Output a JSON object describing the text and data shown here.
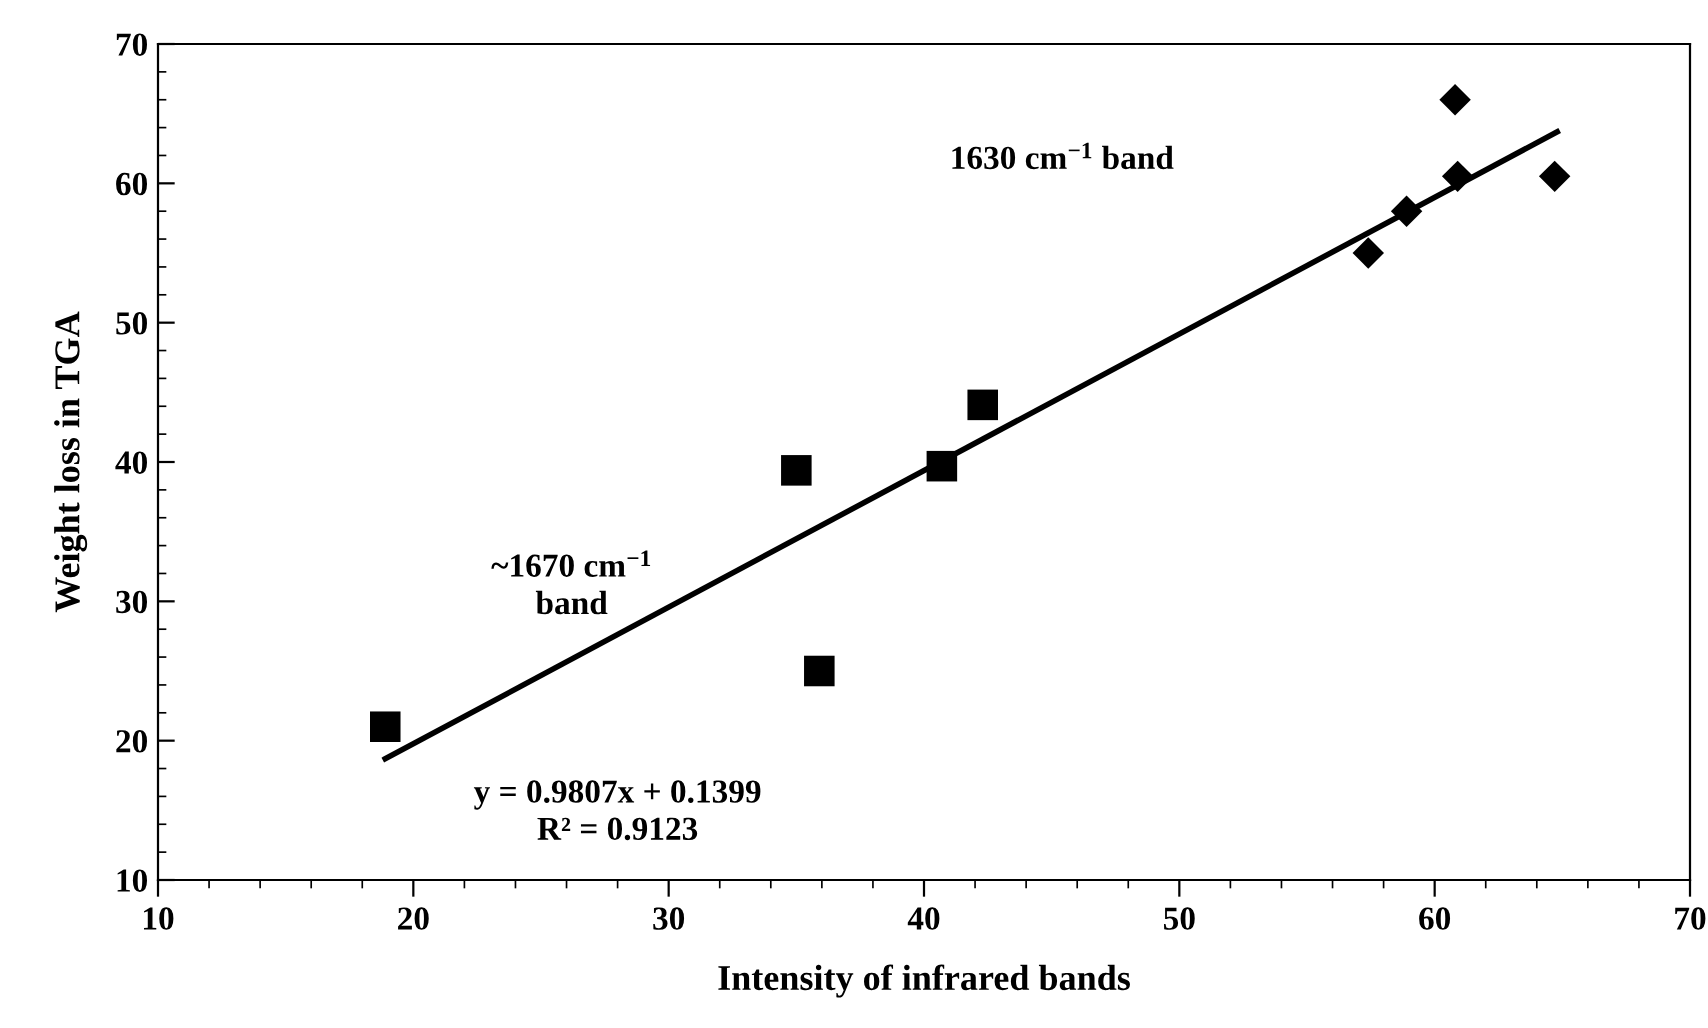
{
  "chart_data": {
    "type": "scatter",
    "xlabel": "Intensity of infrared bands",
    "ylabel": "Weight loss in TGA",
    "xlim": [
      10,
      70
    ],
    "xticks": [
      10,
      20,
      30,
      40,
      50,
      60,
      70
    ],
    "ylim": [
      10,
      70
    ],
    "yticks": [
      10,
      20,
      30,
      40,
      50,
      60,
      70
    ],
    "grid": false,
    "legend": false,
    "series": [
      {
        "color": "#000000",
        "marker": "square",
        "x": [
          18.9,
          35.0,
          35.9,
          40.7,
          42.3
        ],
        "values": [
          21.0,
          39.4,
          25.0,
          39.7,
          44.1
        ]
      },
      {
        "color": "#000000",
        "marker": "diamond",
        "x": [
          57.4,
          58.9,
          60.9,
          60.8,
          64.7
        ],
        "values": [
          55.0,
          58.0,
          60.5,
          66.0,
          60.5
        ]
      },
      {
        "type": "line",
        "color": "#000000",
        "marker": "none",
        "line_style": "solid",
        "x": [
          18.9,
          64.8
        ],
        "values": [
          18.7,
          63.7
        ]
      }
    ],
    "annotations": [
      "1630 cm$^{−1}$ band",
      "~1670 cm$^{−1}$\nband",
      "y = 0.9807x + 0.1399\nR² = 0.9123"
    ]
  }
}
